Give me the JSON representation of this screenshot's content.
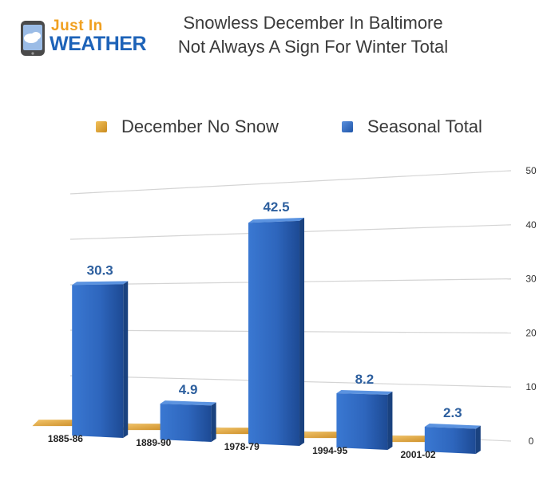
{
  "logo": {
    "line1": "Just In",
    "line2": "WEATHER"
  },
  "title": {
    "line1": "Snowless December In Baltimore",
    "line2": "Not Always A Sign For Winter Total"
  },
  "legend": [
    {
      "label": "December No Snow",
      "color": "#e0a030"
    },
    {
      "label": "Seasonal Total",
      "color": "#2e6bc6"
    }
  ],
  "chart_data": {
    "type": "bar",
    "categories": [
      "1885-86",
      "1889-90",
      "1978-79",
      "1994-95",
      "2001-02"
    ],
    "series": [
      {
        "name": "December No Snow",
        "values": [
          0,
          0,
          0,
          0,
          0
        ],
        "color": "#e0a030"
      },
      {
        "name": "Seasonal Total",
        "values": [
          30.3,
          4.9,
          42.5,
          8.2,
          2.3
        ],
        "color": "#2e6bc6"
      }
    ],
    "data_labels": [
      "30.3",
      "4.9",
      "42.5",
      "8.2",
      "2.3"
    ],
    "ylim": [
      0,
      50
    ],
    "yticks": [
      0,
      10,
      20,
      30,
      40,
      50
    ],
    "grid": true,
    "legend_position": "top",
    "perspective": "3d"
  }
}
